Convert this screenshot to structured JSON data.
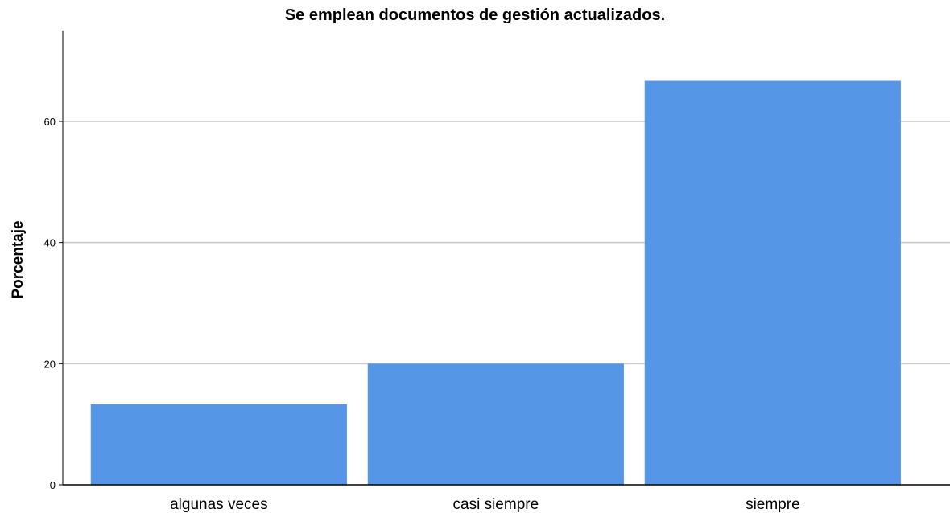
{
  "chart_data": {
    "type": "bar",
    "title": "Se emplean documentos de gestión actualizados.",
    "xlabel": "",
    "ylabel": "Porcentaje",
    "categories": [
      "algunas veces",
      "casi siempre",
      "siempre"
    ],
    "values": [
      13.3,
      20.0,
      66.7
    ],
    "yticks": [
      0,
      20,
      40,
      60
    ],
    "ylim": [
      0,
      75
    ],
    "grid": true,
    "legend": "none",
    "colors": {
      "bar": "#5696e6",
      "grid": "#c8c8c8",
      "axis": "#000000"
    }
  }
}
